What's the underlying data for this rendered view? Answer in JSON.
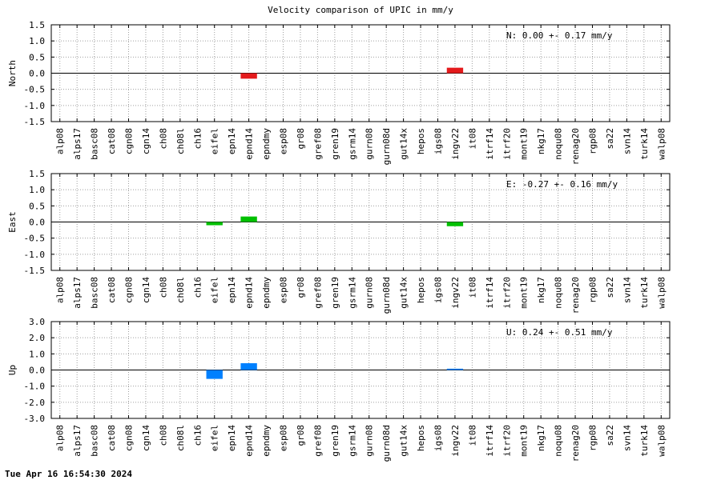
{
  "title": "Velocity comparison of UPIC in mm/y",
  "footer": "Tue Apr 16 16:54:30 2024",
  "chart_data": [
    {
      "type": "bar",
      "ylabel": "North",
      "ylim": [
        -1.5,
        1.5
      ],
      "yticks": [
        "-1.5",
        "-1.0",
        "-0.5",
        "0.0",
        "0.5",
        "1.0",
        "1.5"
      ],
      "color": "#e41a1c",
      "annotation": "N:   0.00 +-  0.17 mm/y",
      "grid": true,
      "categories": [
        "alp08",
        "alps17",
        "basc08",
        "cat08",
        "cgn08",
        "cgn14",
        "ch08",
        "ch08l",
        "ch16",
        "eifel",
        "epn14",
        "epnd14",
        "epndmy",
        "esp08",
        "gr08",
        "gref08",
        "gren19",
        "gsrm14",
        "gurn08",
        "gurn08d",
        "gut14x",
        "hepos",
        "igs08",
        "ingv22",
        "it08",
        "itrf14",
        "itrf20",
        "mont19",
        "nkg17",
        "noqu08",
        "renag20",
        "rgp08",
        "sa22",
        "svn14",
        "turk14",
        "walp08"
      ],
      "values": [
        0,
        0,
        0,
        0,
        0,
        0,
        0,
        0,
        0,
        0,
        0,
        -0.17,
        0,
        0,
        0,
        0,
        0,
        0,
        0,
        0,
        0,
        0,
        0,
        0.17,
        0,
        0,
        0,
        0,
        0,
        0,
        0,
        0,
        0,
        0,
        0,
        0
      ]
    },
    {
      "type": "bar",
      "ylabel": "East",
      "ylim": [
        -1.5,
        1.5
      ],
      "yticks": [
        "-1.5",
        "-1.0",
        "-0.5",
        "0.0",
        "0.5",
        "1.0",
        "1.5"
      ],
      "color": "#00c000",
      "annotation": "E:  -0.27 +-  0.16 mm/y",
      "grid": true,
      "categories": [
        "alp08",
        "alps17",
        "basc08",
        "cat08",
        "cgn08",
        "cgn14",
        "ch08",
        "ch08l",
        "ch16",
        "eifel",
        "epn14",
        "epnd14",
        "epndmy",
        "esp08",
        "gr08",
        "gref08",
        "gren19",
        "gsrm14",
        "gurn08",
        "gurn08d",
        "gut14x",
        "hepos",
        "igs08",
        "ingv22",
        "it08",
        "itrf14",
        "itrf20",
        "mont19",
        "nkg17",
        "noqu08",
        "renag20",
        "rgp08",
        "sa22",
        "svn14",
        "turk14",
        "walp08"
      ],
      "values": [
        0,
        0,
        0,
        0,
        0,
        0,
        0,
        0,
        0,
        -0.1,
        0,
        0.17,
        0,
        0,
        0,
        0,
        0,
        0,
        0,
        0,
        0,
        0,
        0,
        -0.13,
        0,
        0,
        0,
        0,
        0,
        0,
        0,
        0,
        0,
        0,
        0,
        0
      ]
    },
    {
      "type": "bar",
      "ylabel": "Up",
      "ylim": [
        -3.0,
        3.0
      ],
      "yticks": [
        "-3.0",
        "-2.0",
        "-1.0",
        "0.0",
        "1.0",
        "2.0",
        "3.0"
      ],
      "color": "#0080ff",
      "annotation": "U:   0.24 +-  0.51 mm/y",
      "grid": true,
      "categories": [
        "alp08",
        "alps17",
        "basc08",
        "cat08",
        "cgn08",
        "cgn14",
        "ch08",
        "ch08l",
        "ch16",
        "eifel",
        "epn14",
        "epnd14",
        "epndmy",
        "esp08",
        "gr08",
        "gref08",
        "gren19",
        "gsrm14",
        "gurn08",
        "gurn08d",
        "gut14x",
        "hepos",
        "igs08",
        "ingv22",
        "it08",
        "itrf14",
        "itrf20",
        "mont19",
        "nkg17",
        "noqu08",
        "renag20",
        "rgp08",
        "sa22",
        "svn14",
        "turk14",
        "walp08"
      ],
      "values": [
        0,
        0,
        0,
        0,
        0,
        0,
        0,
        0,
        0,
        -0.55,
        0,
        0.42,
        0,
        0,
        0,
        0,
        0,
        0,
        0,
        0,
        0,
        0,
        0,
        0.08,
        0,
        0,
        0,
        0,
        0,
        0,
        0,
        0,
        0,
        0,
        0,
        0
      ]
    }
  ]
}
